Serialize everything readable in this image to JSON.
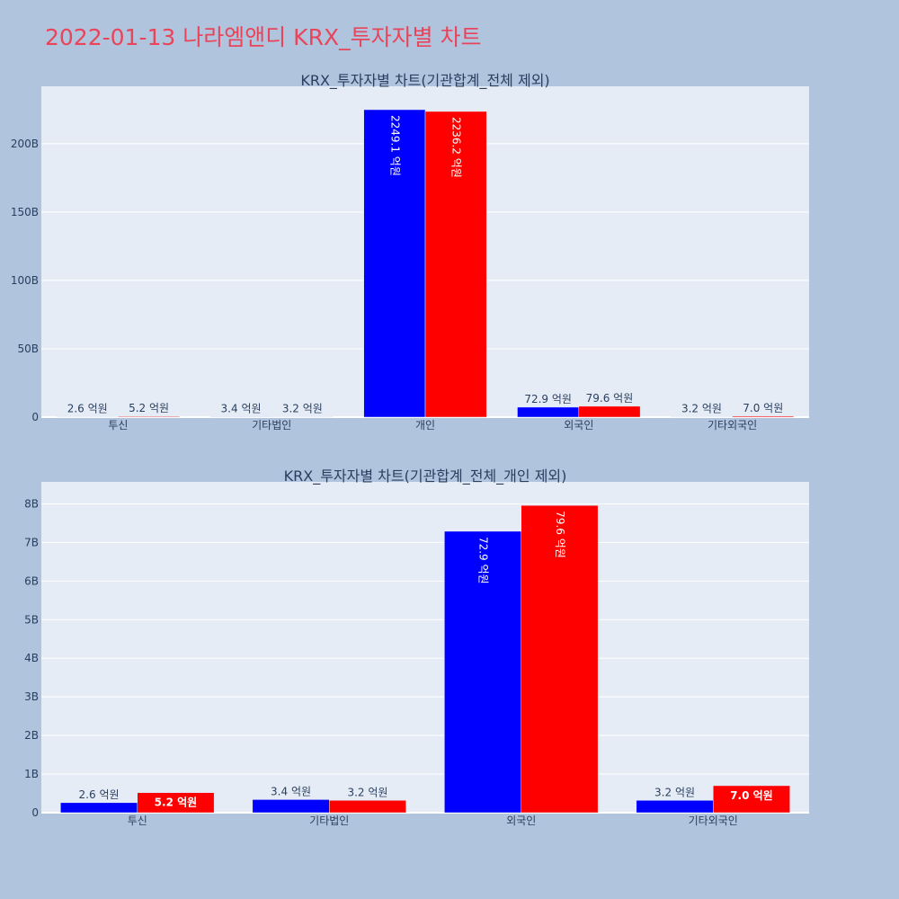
{
  "page": {
    "title": "2022-01-13 나라엠앤디 KRX_투자자별 차트",
    "title_color": "#e8455a",
    "background": "#b0c4de"
  },
  "chart_data": [
    {
      "type": "bar",
      "title": "KRX_투자자별 차트(기관합계_전체 제외)",
      "categories": [
        "투신",
        "기타법인",
        "개인",
        "외국인",
        "기타외국인"
      ],
      "series": [
        {
          "color": "#0000ff",
          "values": [
            260000000,
            340000000,
            224910000000,
            7290000000,
            320000000
          ],
          "labels": [
            "2.6 억원",
            "3.4 억원",
            "2249.1 억원",
            "72.9 억원",
            "3.2 억원"
          ]
        },
        {
          "color": "#ff0000",
          "values": [
            520000000,
            320000000,
            223620000000,
            7960000000,
            700000000
          ],
          "labels": [
            "5.2 억원",
            "3.2 억원",
            "2236.2 억원",
            "79.6 억원",
            "7.0 억원"
          ]
        }
      ],
      "yticks": [
        0,
        50000000000,
        100000000000,
        150000000000,
        200000000000
      ],
      "ytick_labels": [
        "0",
        "50B",
        "100B",
        "150B",
        "200B"
      ],
      "ylim": [
        0,
        242000000000
      ],
      "grid": true,
      "xlabel": "",
      "ylabel": ""
    },
    {
      "type": "bar",
      "title": "KRX_투자자별 차트(기관합계_전체_개인 제외)",
      "categories": [
        "투신",
        "기타법인",
        "외국인",
        "기타외국인"
      ],
      "series": [
        {
          "color": "#0000ff",
          "values": [
            260000000,
            340000000,
            7290000000,
            320000000
          ],
          "labels": [
            "2.6 억원",
            "3.4 억원",
            "72.9 억원",
            "3.2 억원"
          ]
        },
        {
          "color": "#ff0000",
          "values": [
            520000000,
            320000000,
            7960000000,
            700000000
          ],
          "labels": [
            "5.2 억원",
            "3.2 억원",
            "79.6 억원",
            "7.0 억원"
          ]
        }
      ],
      "yticks": [
        0,
        1000000000,
        2000000000,
        3000000000,
        4000000000,
        5000000000,
        6000000000,
        7000000000,
        8000000000
      ],
      "ytick_labels": [
        "0",
        "1B",
        "2B",
        "3B",
        "4B",
        "5B",
        "6B",
        "7B",
        "8B"
      ],
      "ylim": [
        0,
        8570000000
      ],
      "grid": true,
      "xlabel": "",
      "ylabel": ""
    }
  ]
}
